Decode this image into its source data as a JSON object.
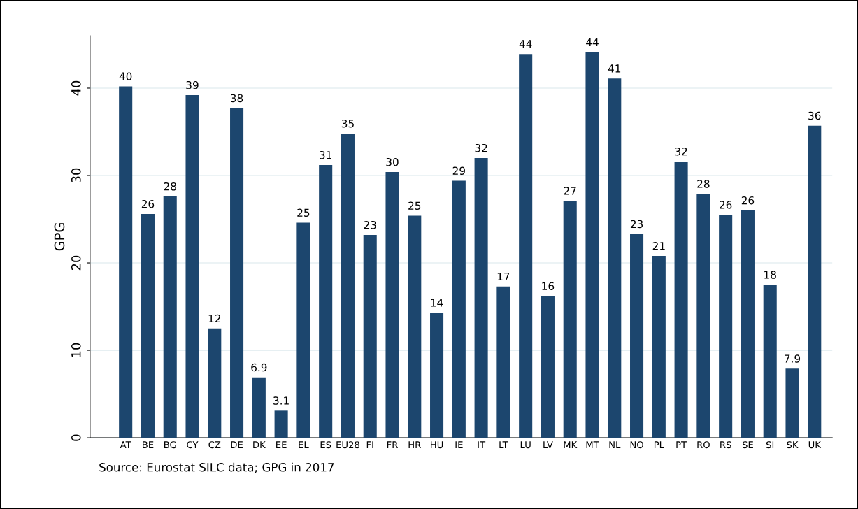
{
  "chart_data": {
    "type": "bar",
    "ylabel": "GPG",
    "categories": [
      "AT",
      "BE",
      "BG",
      "CY",
      "CZ",
      "DE",
      "DK",
      "EE",
      "EL",
      "ES",
      "EU28",
      "FI",
      "FR",
      "HR",
      "HU",
      "IE",
      "IT",
      "LT",
      "LU",
      "LV",
      "MK",
      "MT",
      "NL",
      "NO",
      "PL",
      "PT",
      "RO",
      "RS",
      "SE",
      "SI",
      "SK",
      "UK"
    ],
    "values": [
      40.2,
      25.6,
      27.6,
      39.2,
      12.5,
      37.7,
      6.9,
      3.1,
      24.6,
      31.2,
      34.8,
      23.2,
      30.4,
      25.4,
      14.3,
      29.4,
      32.0,
      17.3,
      43.9,
      16.2,
      27.1,
      44.1,
      41.1,
      23.3,
      20.8,
      31.6,
      27.9,
      25.5,
      26.0,
      17.5,
      7.9,
      35.7
    ],
    "value_labels": [
      "40",
      "26",
      "28",
      "39",
      "12",
      "38",
      "6.9",
      "3.1",
      "25",
      "31",
      "35",
      "23",
      "30",
      "25",
      "14",
      "29",
      "32",
      "17",
      "44",
      "16",
      "27",
      "44",
      "41",
      "23",
      "21",
      "32",
      "28",
      "26",
      "26",
      "18",
      "7.9",
      "36"
    ],
    "color": "#1c466e",
    "ylim": [
      0,
      46
    ],
    "yticks": [
      0,
      10,
      20,
      30,
      40
    ],
    "grid": "y",
    "annotations": [
      "Source: Eurostat SILC data; GPG in 2017"
    ]
  }
}
